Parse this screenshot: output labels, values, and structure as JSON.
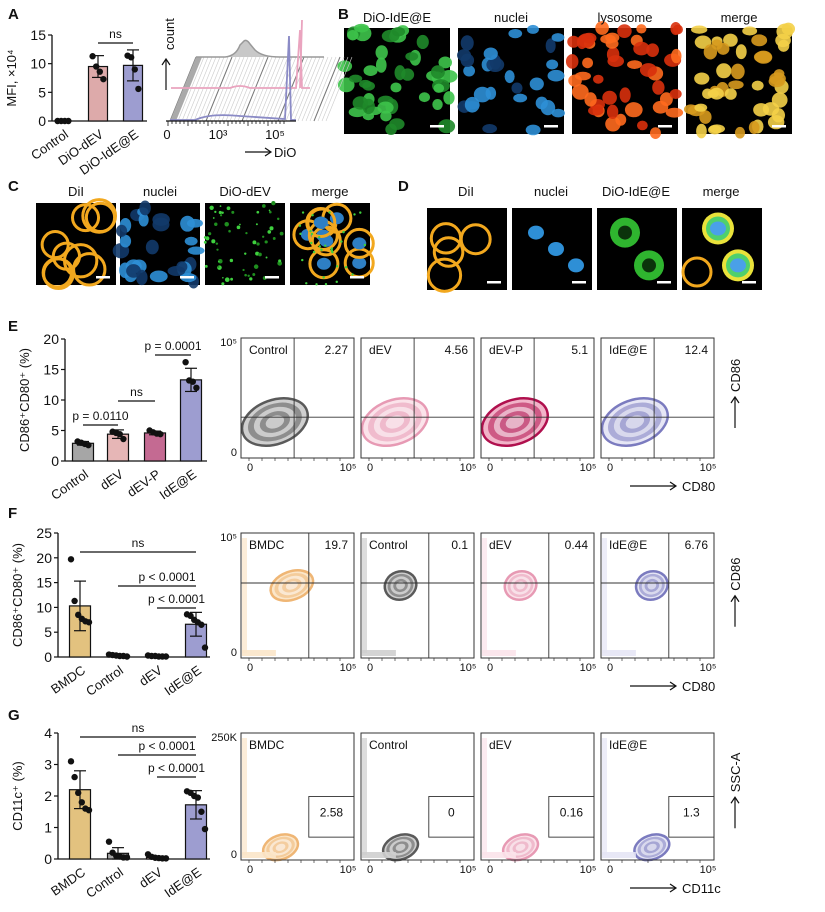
{
  "panel_labels": {
    "A": "A",
    "B": "B",
    "C": "C",
    "D": "D",
    "E": "E",
    "F": "F",
    "G": "G"
  },
  "colors": {
    "Control": "#a6a6a6",
    "dEV": "#e6b6b6",
    "dEV-P": "#c46a92",
    "IdE@E": "#9d9dd0",
    "BMDC": "#e3c27f",
    "DiO-dEV": "#ddaaaa",
    "DiO-IdE@E": "#9d9dd0"
  },
  "panel_B": {
    "titles": [
      "DiO-IdE@E",
      "nuclei",
      "lysosome",
      "merge"
    ]
  },
  "panel_C": {
    "titles": [
      "DiI",
      "nuclei",
      "DiO-dEV",
      "merge"
    ]
  },
  "panel_D": {
    "titles": [
      "DiI",
      "nuclei",
      "DiO-IdE@E",
      "merge"
    ]
  },
  "chart_data": [
    {
      "panel": "A",
      "type": "bar",
      "categories": [
        "Control",
        "DiO-dEV",
        "DiO-IdE@E"
      ],
      "values": [
        0,
        9.5,
        9.7
      ],
      "sd": [
        0,
        1.9,
        2.7
      ],
      "points": [
        [
          0,
          0,
          0,
          0
        ],
        [
          11.3,
          9.5,
          8.6,
          7.3
        ],
        [
          11.4,
          11.1,
          9.0,
          5.6
        ]
      ],
      "ylabel": "MFI, ×10⁴",
      "ylim": [
        0,
        15
      ],
      "yticks": [
        "0",
        "5",
        "10",
        "15"
      ],
      "comparisons": [
        {
          "from": 1,
          "to": 2,
          "label": "ns"
        }
      ]
    },
    {
      "panel": "A",
      "type": "histogram-overlay",
      "series": [
        "Control",
        "DiO-dEV",
        "DiO-IdE@E"
      ],
      "xlabel": "DiO",
      "ylabel": "count",
      "xticks": [
        "0",
        "10³",
        "10⁵"
      ]
    },
    {
      "panel": "E",
      "type": "bar",
      "categories": [
        "Control",
        "dEV",
        "dEV-P",
        "IdE@E"
      ],
      "values": [
        2.9,
        4.4,
        4.6,
        13.3
      ],
      "sd": [
        0.3,
        0.7,
        0.3,
        1.9
      ],
      "points": [
        [
          3.2,
          3.0,
          2.8,
          2.6
        ],
        [
          4.8,
          4.6,
          4.4,
          3.6
        ],
        [
          5.0,
          4.7,
          4.5,
          4.4
        ],
        [
          16.2,
          13.2,
          13.0,
          12.0
        ]
      ],
      "ylabel": "CD86⁺CD80⁺ (%)",
      "ylim": [
        0,
        20
      ],
      "yticks": [
        "0",
        "5",
        "10",
        "15",
        "20"
      ],
      "comparisons": [
        {
          "from": 0,
          "to": 1,
          "label": "p = 0.0110"
        },
        {
          "from": 1,
          "to": 2,
          "label": "ns"
        },
        {
          "from": 2,
          "to": 3,
          "label": "p = 0.0001"
        }
      ]
    },
    {
      "panel": "E",
      "type": "flow-contour",
      "xlabel": "CD80",
      "ylabel": "CD86",
      "xticks": [
        "0",
        "10⁵"
      ],
      "yticks": [
        "0",
        "10⁵"
      ],
      "samples": [
        {
          "name": "Control",
          "value": "2.27"
        },
        {
          "name": "dEV",
          "value": "4.56"
        },
        {
          "name": "dEV-P",
          "value": "5.1"
        },
        {
          "name": "IdE@E",
          "value": "12.4"
        }
      ]
    },
    {
      "panel": "F",
      "type": "bar",
      "categories": [
        "BMDC",
        "Control",
        "dEV",
        "IdE@E"
      ],
      "values": [
        10.3,
        0.3,
        0.2,
        6.6
      ],
      "sd": [
        5.0,
        0.2,
        0.1,
        2.4
      ],
      "points": [
        [
          19.7,
          11.3,
          8.5,
          7.7,
          7.2,
          7.0
        ],
        [
          0.5,
          0.4,
          0.3,
          0.2,
          0.2,
          0.1
        ],
        [
          0.3,
          0.2,
          0.2,
          0.1,
          0.1,
          0.1
        ],
        [
          8.6,
          8.3,
          7.5,
          7.0,
          6.5,
          1.9
        ]
      ],
      "ylabel": "CD86⁺CD80⁺ (%)",
      "ylim": [
        0,
        25
      ],
      "yticks": [
        "0",
        "5",
        "10",
        "15",
        "20",
        "25"
      ],
      "comparisons": [
        {
          "from": 0,
          "to": 3,
          "label": "ns"
        },
        {
          "from": 1,
          "to": 3,
          "label": "p < 0.0001"
        },
        {
          "from": 2,
          "to": 3,
          "label": "p < 0.0001"
        }
      ]
    },
    {
      "panel": "F",
      "type": "flow-contour",
      "xlabel": "CD80",
      "ylabel": "CD86",
      "xticks": [
        "0",
        "10⁵"
      ],
      "yticks": [
        "0",
        "10⁵"
      ],
      "samples": [
        {
          "name": "BMDC",
          "value": "19.7"
        },
        {
          "name": "Control",
          "value": "0.1"
        },
        {
          "name": "dEV",
          "value": "0.44"
        },
        {
          "name": "IdE@E",
          "value": "6.76"
        }
      ]
    },
    {
      "panel": "G",
      "type": "bar",
      "categories": [
        "BMDC",
        "Control",
        "dEV",
        "IdE@E"
      ],
      "values": [
        2.2,
        0.18,
        0.05,
        1.72
      ],
      "sd": [
        0.6,
        0.18,
        0.04,
        0.45
      ],
      "points": [
        [
          3.1,
          2.6,
          2.1,
          1.8,
          1.6,
          1.55
        ],
        [
          0.55,
          0.2,
          0.1,
          0.08,
          0.05,
          0.05
        ],
        [
          0.15,
          0.07,
          0.04,
          0.03,
          0.02,
          0.02
        ],
        [
          2.15,
          2.1,
          2.0,
          1.95,
          1.5,
          0.95
        ]
      ],
      "ylabel": "CD11c⁺ (%)",
      "ylim": [
        0,
        4
      ],
      "yticks": [
        "0",
        "1",
        "2",
        "3",
        "4"
      ],
      "comparisons": [
        {
          "from": 0,
          "to": 3,
          "label": "ns"
        },
        {
          "from": 1,
          "to": 3,
          "label": "p < 0.0001"
        },
        {
          "from": 2,
          "to": 3,
          "label": "p < 0.0001"
        }
      ]
    },
    {
      "panel": "G",
      "type": "flow-contour",
      "xlabel": "CD11c",
      "ylabel": "SSC-A",
      "xticks": [
        "0",
        "10⁵"
      ],
      "yticks": [
        "0",
        "250K"
      ],
      "samples": [
        {
          "name": "BMDC",
          "value": "2.58"
        },
        {
          "name": "Control",
          "value": "0"
        },
        {
          "name": "dEV",
          "value": "0.16"
        },
        {
          "name": "IdE@E",
          "value": "1.3"
        }
      ]
    }
  ]
}
